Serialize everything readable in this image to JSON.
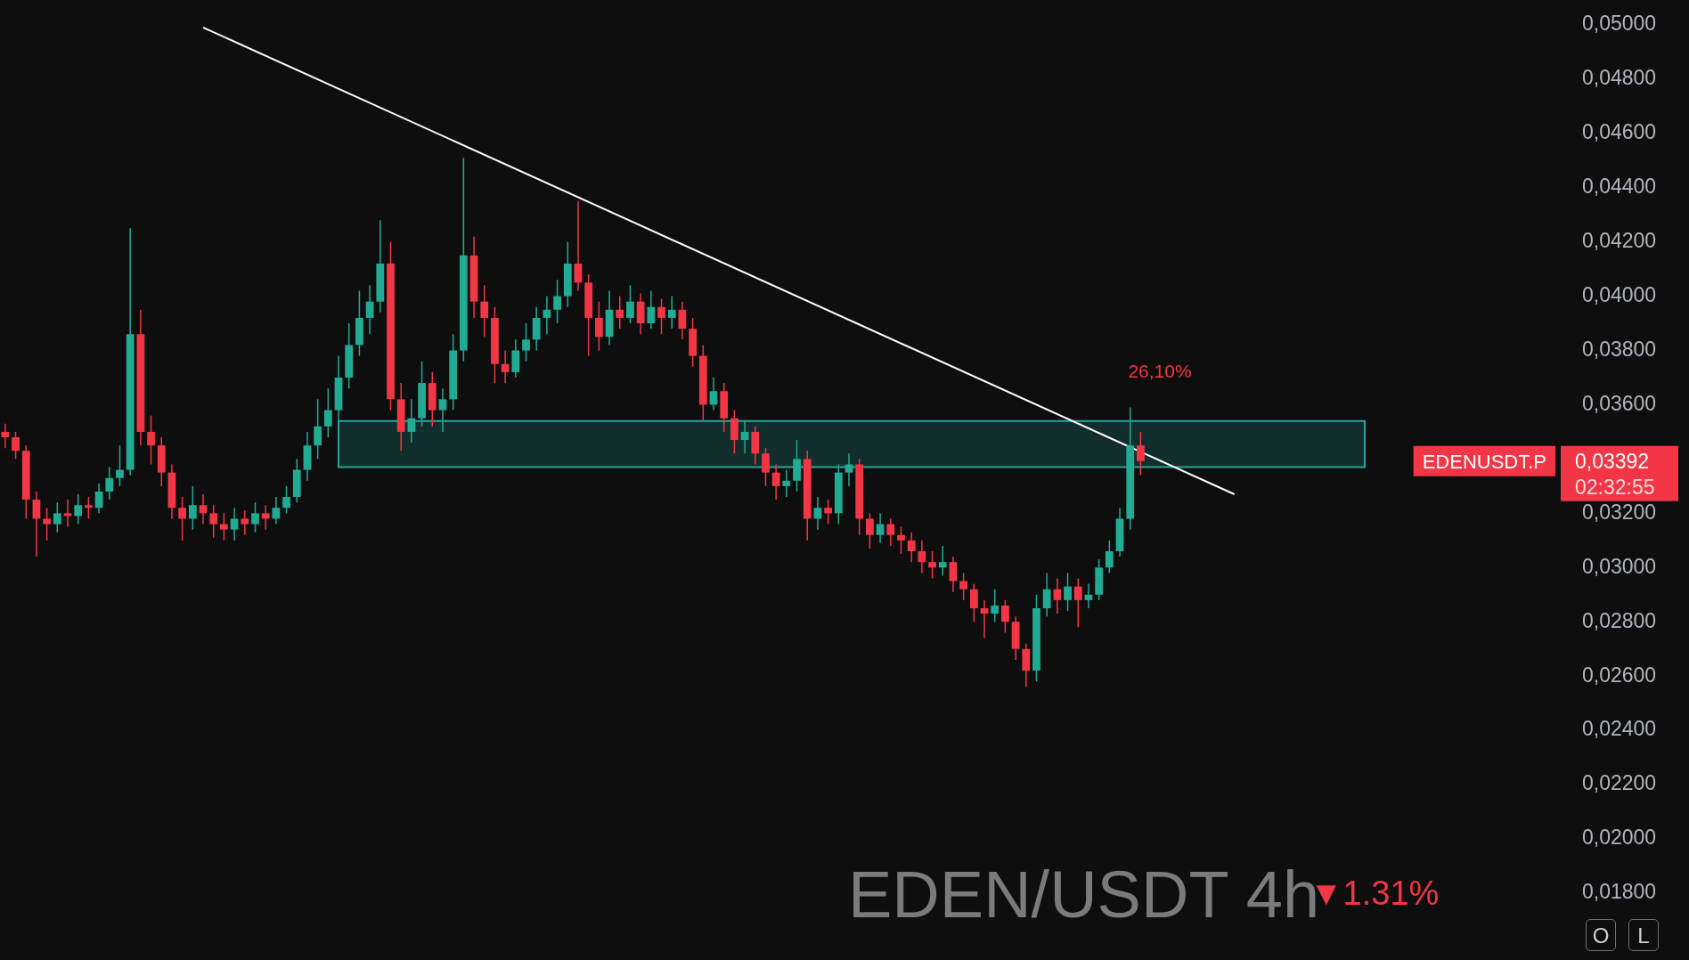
{
  "chart_data": {
    "type": "candlestick",
    "title": "EDEN/USDT 4h",
    "subtitle": "▼1.31%",
    "categories": [
      null,
      null,
      null,
      null,
      null,
      null,
      null,
      null,
      null,
      null,
      null,
      null,
      null,
      null,
      null,
      null,
      null,
      null,
      null,
      null,
      null,
      null,
      null,
      null,
      null,
      null,
      null,
      null,
      null,
      null,
      null,
      null,
      null,
      null,
      null,
      null,
      null,
      null,
      null,
      null,
      null,
      null,
      null,
      null,
      null,
      null,
      null,
      null,
      null,
      null,
      null,
      null,
      null,
      null,
      null,
      null,
      null,
      null,
      null,
      null,
      null,
      null,
      null,
      null,
      null,
      null,
      null,
      null,
      null,
      null,
      null,
      null,
      null,
      null,
      null,
      null,
      null,
      null,
      null,
      null,
      null,
      null,
      null,
      null,
      null,
      null,
      null,
      null,
      null,
      null,
      null,
      null,
      null,
      null,
      null,
      null,
      null,
      null,
      null,
      null,
      null,
      null,
      null,
      null,
      null,
      null,
      null,
      null,
      null,
      null,
      null,
      null,
      null,
      null,
      null,
      null,
      null,
      null,
      null,
      null,
      null,
      null,
      null,
      null,
      null,
      null,
      null,
      null,
      null,
      null,
      null,
      null,
      null,
      null,
      null,
      null,
      null,
      null,
      null,
      null,
      null,
      null,
      null,
      null,
      null,
      null,
      null,
      null,
      null,
      null
    ],
    "ohlc": [
      [
        0.035,
        0.0353,
        0.0344,
        0.0348
      ],
      [
        0.0348,
        0.035,
        0.034,
        0.0343
      ],
      [
        0.0343,
        0.0345,
        0.0318,
        0.0325
      ],
      [
        0.0325,
        0.0328,
        0.0304,
        0.0318
      ],
      [
        0.0318,
        0.0322,
        0.031,
        0.0316
      ],
      [
        0.0316,
        0.0324,
        0.0313,
        0.032
      ],
      [
        0.032,
        0.0325,
        0.0315,
        0.0319
      ],
      [
        0.0319,
        0.0327,
        0.0316,
        0.0323
      ],
      [
        0.0323,
        0.0326,
        0.0318,
        0.0322
      ],
      [
        0.0322,
        0.0331,
        0.032,
        0.0328
      ],
      [
        0.0328,
        0.0337,
        0.0325,
        0.0333
      ],
      [
        0.0333,
        0.0345,
        0.033,
        0.0336
      ],
      [
        0.0336,
        0.0425,
        0.0334,
        0.0386
      ],
      [
        0.0386,
        0.0395,
        0.0345,
        0.035
      ],
      [
        0.035,
        0.0356,
        0.0338,
        0.0345
      ],
      [
        0.0345,
        0.0348,
        0.033,
        0.0335
      ],
      [
        0.0335,
        0.0338,
        0.0318,
        0.0322
      ],
      [
        0.0322,
        0.0326,
        0.031,
        0.0318
      ],
      [
        0.0318,
        0.033,
        0.0314,
        0.0323
      ],
      [
        0.0323,
        0.0327,
        0.0316,
        0.032
      ],
      [
        0.032,
        0.0323,
        0.0311,
        0.0316
      ],
      [
        0.0316,
        0.032,
        0.031,
        0.0314
      ],
      [
        0.0314,
        0.0322,
        0.031,
        0.0318
      ],
      [
        0.0318,
        0.0321,
        0.0312,
        0.0316
      ],
      [
        0.0316,
        0.0324,
        0.0313,
        0.032
      ],
      [
        0.032,
        0.0323,
        0.0314,
        0.0318
      ],
      [
        0.0318,
        0.0326,
        0.0316,
        0.0322
      ],
      [
        0.0322,
        0.033,
        0.032,
        0.0326
      ],
      [
        0.0326,
        0.034,
        0.0324,
        0.0336
      ],
      [
        0.0336,
        0.035,
        0.0332,
        0.0345
      ],
      [
        0.0345,
        0.0362,
        0.034,
        0.0352
      ],
      [
        0.0352,
        0.0366,
        0.0348,
        0.0358
      ],
      [
        0.0358,
        0.0378,
        0.0354,
        0.037
      ],
      [
        0.037,
        0.039,
        0.0366,
        0.0382
      ],
      [
        0.0382,
        0.0402,
        0.0378,
        0.0392
      ],
      [
        0.0392,
        0.0404,
        0.0386,
        0.0398
      ],
      [
        0.0398,
        0.0428,
        0.0394,
        0.0412
      ],
      [
        0.0412,
        0.042,
        0.0358,
        0.0362
      ],
      [
        0.0362,
        0.0368,
        0.0343,
        0.035
      ],
      [
        0.035,
        0.0362,
        0.0346,
        0.0355
      ],
      [
        0.0355,
        0.0376,
        0.0352,
        0.0368
      ],
      [
        0.0368,
        0.0372,
        0.0352,
        0.0358
      ],
      [
        0.0358,
        0.0366,
        0.035,
        0.0362
      ],
      [
        0.0362,
        0.0386,
        0.0358,
        0.038
      ],
      [
        0.038,
        0.0451,
        0.0376,
        0.0415
      ],
      [
        0.0415,
        0.0422,
        0.0392,
        0.0398
      ],
      [
        0.0398,
        0.0404,
        0.0385,
        0.0392
      ],
      [
        0.0392,
        0.0396,
        0.0368,
        0.0375
      ],
      [
        0.0375,
        0.038,
        0.0368,
        0.0372
      ],
      [
        0.0372,
        0.0384,
        0.037,
        0.038
      ],
      [
        0.038,
        0.039,
        0.0376,
        0.0384
      ],
      [
        0.0384,
        0.0396,
        0.038,
        0.0392
      ],
      [
        0.0392,
        0.04,
        0.0386,
        0.0395
      ],
      [
        0.0395,
        0.0406,
        0.039,
        0.04
      ],
      [
        0.04,
        0.042,
        0.0396,
        0.0412
      ],
      [
        0.0412,
        0.0435,
        0.0402,
        0.0405
      ],
      [
        0.0405,
        0.0408,
        0.0378,
        0.0392
      ],
      [
        0.0392,
        0.0398,
        0.038,
        0.0385
      ],
      [
        0.0385,
        0.0402,
        0.0382,
        0.0395
      ],
      [
        0.0395,
        0.04,
        0.0388,
        0.0392
      ],
      [
        0.0392,
        0.0404,
        0.039,
        0.0398
      ],
      [
        0.0398,
        0.0401,
        0.0386,
        0.039
      ],
      [
        0.039,
        0.0402,
        0.0388,
        0.0396
      ],
      [
        0.0396,
        0.0399,
        0.0386,
        0.0392
      ],
      [
        0.0392,
        0.04,
        0.0388,
        0.0395
      ],
      [
        0.0395,
        0.0398,
        0.0384,
        0.0388
      ],
      [
        0.0388,
        0.0392,
        0.0374,
        0.0378
      ],
      [
        0.0378,
        0.0382,
        0.0354,
        0.036
      ],
      [
        0.036,
        0.037,
        0.0358,
        0.0365
      ],
      [
        0.0365,
        0.0368,
        0.035,
        0.0355
      ],
      [
        0.0355,
        0.0358,
        0.0342,
        0.0347
      ],
      [
        0.0347,
        0.0354,
        0.0342,
        0.035
      ],
      [
        0.035,
        0.0352,
        0.0338,
        0.0342
      ],
      [
        0.0342,
        0.0344,
        0.033,
        0.0335
      ],
      [
        0.0335,
        0.0338,
        0.0325,
        0.033
      ],
      [
        0.033,
        0.0336,
        0.0326,
        0.0332
      ],
      [
        0.0332,
        0.0347,
        0.0328,
        0.034
      ],
      [
        0.034,
        0.0343,
        0.031,
        0.0318
      ],
      [
        0.0318,
        0.0326,
        0.0314,
        0.0322
      ],
      [
        0.0322,
        0.0325,
        0.0316,
        0.032
      ],
      [
        0.032,
        0.0338,
        0.0316,
        0.0335
      ],
      [
        0.0335,
        0.0342,
        0.033,
        0.0338
      ],
      [
        0.0338,
        0.034,
        0.0312,
        0.0318
      ],
      [
        0.0318,
        0.032,
        0.0307,
        0.0312
      ],
      [
        0.0312,
        0.032,
        0.0309,
        0.0316
      ],
      [
        0.0316,
        0.0318,
        0.0308,
        0.0312
      ],
      [
        0.0312,
        0.0315,
        0.0305,
        0.031
      ],
      [
        0.031,
        0.0313,
        0.0302,
        0.0306
      ],
      [
        0.0306,
        0.031,
        0.0298,
        0.0302
      ],
      [
        0.0302,
        0.0306,
        0.0296,
        0.03
      ],
      [
        0.03,
        0.0308,
        0.0297,
        0.0302
      ],
      [
        0.0302,
        0.0304,
        0.0291,
        0.0295
      ],
      [
        0.0295,
        0.0298,
        0.0288,
        0.0292
      ],
      [
        0.0292,
        0.0294,
        0.028,
        0.0285
      ],
      [
        0.0285,
        0.0288,
        0.0274,
        0.0283
      ],
      [
        0.0283,
        0.0292,
        0.028,
        0.0286
      ],
      [
        0.0286,
        0.0288,
        0.0276,
        0.028
      ],
      [
        0.028,
        0.0282,
        0.0266,
        0.027
      ],
      [
        0.027,
        0.0272,
        0.0256,
        0.0262
      ],
      [
        0.0262,
        0.029,
        0.0258,
        0.0285
      ],
      [
        0.0285,
        0.0298,
        0.0282,
        0.0292
      ],
      [
        0.0292,
        0.0296,
        0.0283,
        0.0288
      ],
      [
        0.0288,
        0.0298,
        0.0284,
        0.0293
      ],
      [
        0.0293,
        0.0296,
        0.0278,
        0.0288
      ],
      [
        0.0288,
        0.0294,
        0.0285,
        0.029
      ],
      [
        0.029,
        0.0303,
        0.0288,
        0.03
      ],
      [
        0.03,
        0.031,
        0.0298,
        0.0306
      ],
      [
        0.0306,
        0.0322,
        0.0304,
        0.0318
      ],
      [
        0.0318,
        0.0359,
        0.0314,
        0.0345
      ],
      [
        0.0345,
        0.035,
        0.0334,
        0.03392
      ],
      null,
      null,
      null,
      null,
      null,
      null,
      null,
      null,
      null,
      null,
      null,
      null,
      null,
      null,
      null,
      null,
      null,
      null,
      null,
      null,
      null,
      null,
      null,
      null,
      null,
      null,
      null,
      null,
      null,
      null,
      null,
      null,
      null,
      null,
      null,
      null,
      null,
      null,
      null,
      null
    ],
    "series": [
      {
        "type": "line",
        "color": "#ffffff",
        "values": [
          null,
          null,
          null,
          null,
          null,
          null,
          null,
          null,
          null,
          null,
          null,
          null,
          null,
          null,
          null,
          null,
          null,
          null,
          null,
          0.0499,
          null,
          null,
          null,
          null,
          null,
          null,
          null,
          null,
          null,
          null,
          null,
          null,
          null,
          null,
          null,
          null,
          null,
          null,
          null,
          null,
          null,
          null,
          null,
          null,
          null,
          null,
          null,
          null,
          null,
          null,
          null,
          null,
          null,
          null,
          null,
          null,
          null,
          null,
          null,
          null,
          null,
          null,
          null,
          null,
          null,
          null,
          null,
          null,
          null,
          null,
          null,
          null,
          null,
          null,
          null,
          null,
          null,
          null,
          null,
          null,
          null,
          null,
          null,
          null,
          null,
          null,
          null,
          null,
          null,
          null,
          null,
          null,
          null,
          null,
          null,
          null,
          null,
          null,
          null,
          null,
          null,
          null,
          null,
          null,
          null,
          null,
          null,
          null,
          null,
          null,
          null,
          null,
          null,
          null,
          null,
          null,
          null,
          null,
          0.0327,
          null,
          null,
          null,
          null,
          null,
          null,
          null,
          null,
          null,
          null,
          null,
          null,
          null,
          null,
          null,
          null,
          null,
          null,
          null,
          null,
          null,
          null,
          null,
          null,
          null,
          null,
          null,
          null,
          null,
          null,
          null
        ]
      }
    ],
    "ylim": [
      0.018,
      0.05
    ],
    "yticks": [
      {
        "value": 0.018,
        "label": "0,01800"
      },
      {
        "value": 0.02,
        "label": "0,02000"
      },
      {
        "value": 0.022,
        "label": "0,02200"
      },
      {
        "value": 0.024,
        "label": "0,02400"
      },
      {
        "value": 0.026,
        "label": "0,02600"
      },
      {
        "value": 0.028,
        "label": "0,02800"
      },
      {
        "value": 0.03,
        "label": "0,03000"
      },
      {
        "value": 0.032,
        "label": "0,03200"
      },
      {
        "value": 0.036,
        "label": "0,03600"
      },
      {
        "value": 0.038,
        "label": "0,03800"
      },
      {
        "value": 0.04,
        "label": "0,04000"
      },
      {
        "value": 0.042,
        "label": "0,04200"
      },
      {
        "value": 0.044,
        "label": "0,04400"
      },
      {
        "value": 0.046,
        "label": "0,04600"
      },
      {
        "value": 0.048,
        "label": "0,04800"
      },
      {
        "value": 0.05,
        "label": "0,05000"
      }
    ],
    "bands": [
      {
        "axis": "y",
        "from": 0.0337,
        "to": 0.0354,
        "color": "#26a69a"
      }
    ],
    "annotations": [
      "26,10%",
      "EDENUSDT.P",
      "0,03392",
      "02:32:55",
      "O",
      "L"
    ],
    "legend": false,
    "tick_labels": "y"
  }
}
